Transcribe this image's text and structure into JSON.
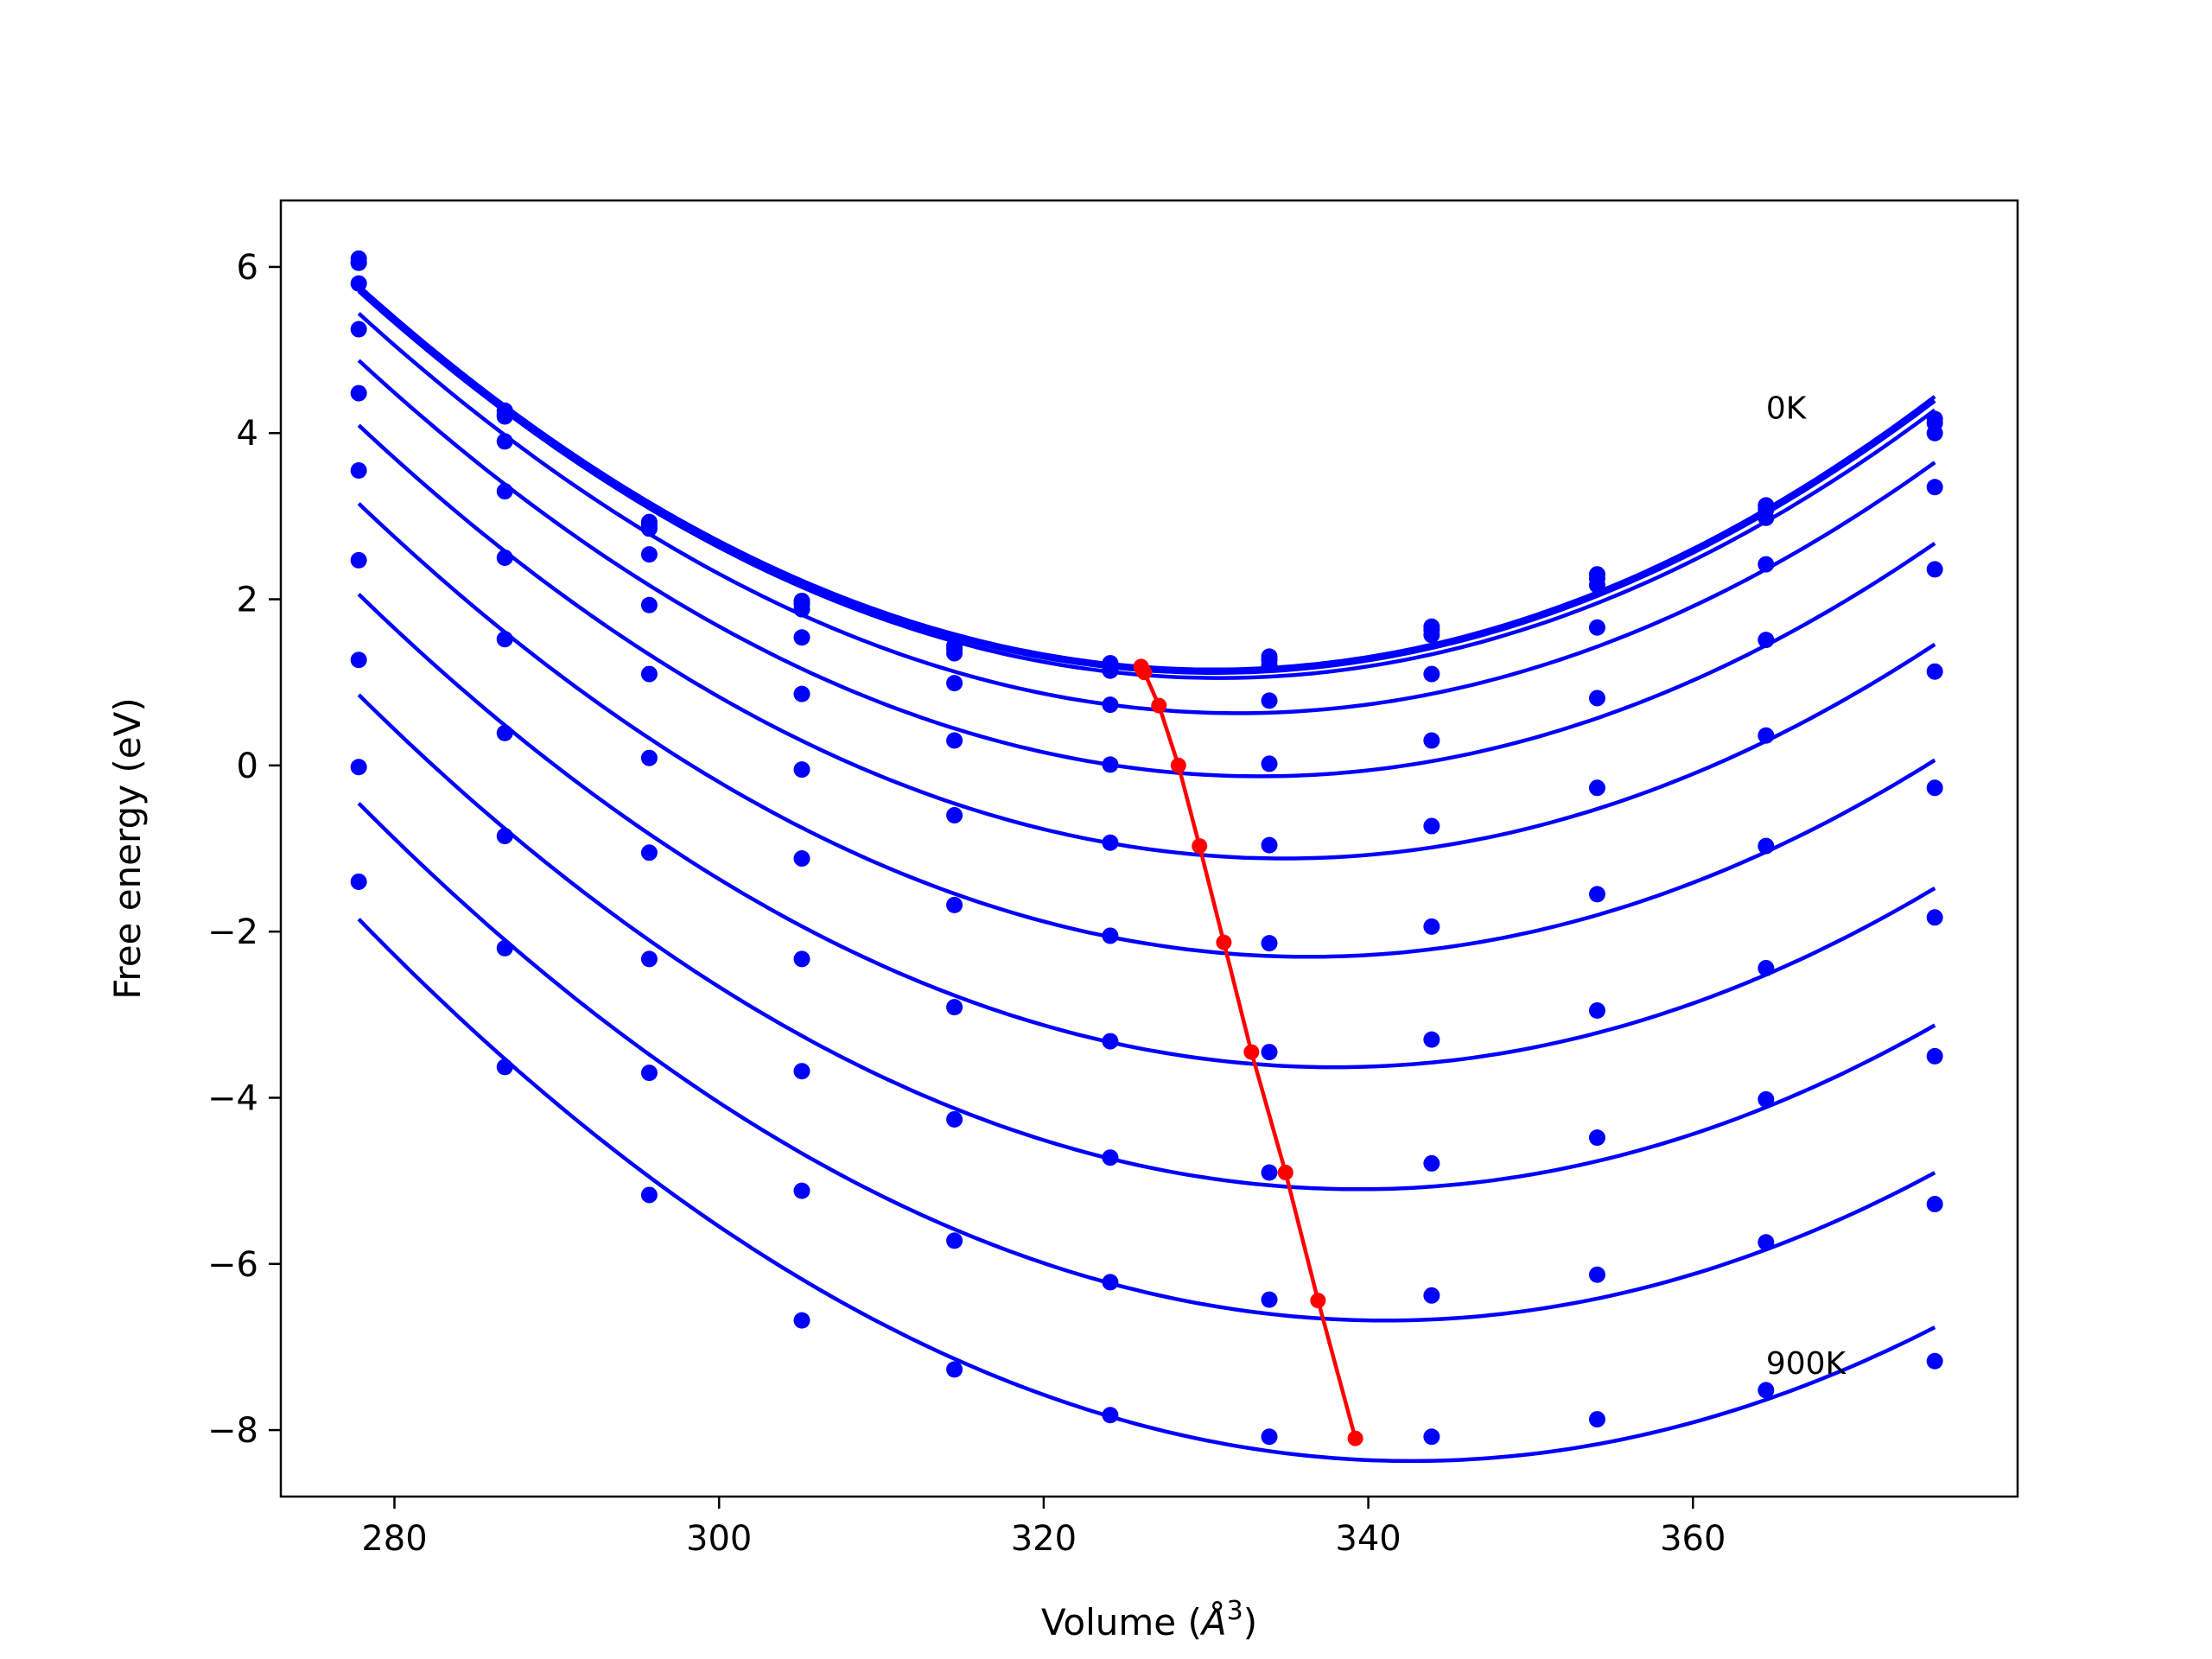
{
  "chart_data": {
    "type": "scatter",
    "title": "",
    "xlabel": "Volume (Å³)",
    "xlabel_parts": {
      "main": "Volume (",
      "unit": "Å",
      "sup": "3",
      "close": ")"
    },
    "ylabel": "Free energy (eV)",
    "xlim": [
      273,
      380
    ],
    "ylim": [
      -8.8,
      6.8
    ],
    "xticks": [
      280,
      300,
      320,
      340,
      360
    ],
    "yticks": [
      6,
      4,
      2,
      0,
      -2,
      -4,
      -6,
      -8
    ],
    "xtick_labels": [
      "280",
      "300",
      "320",
      "340",
      "360"
    ],
    "ytick_labels": [
      "6",
      "4",
      "2",
      "0",
      "−2",
      "−4",
      "−6",
      "−8"
    ],
    "grid": false,
    "annotations": [
      {
        "text": "0K",
        "x": 364.5,
        "y": 4.3
      },
      {
        "text": "900K",
        "x": 364.5,
        "y": -7.2
      }
    ],
    "colors": {
      "series": "#0000ff",
      "minimum_line": "#ff0000",
      "frame": "#000000"
    },
    "x": [
      277.8,
      286.8,
      295.7,
      305.1,
      314.5,
      324.1,
      333.9,
      343.9,
      354.1,
      364.5,
      374.9
    ],
    "series": [
      {
        "values": [
          6.1,
          4.27,
          2.93,
          1.98,
          1.44,
          1.23,
          1.31,
          1.67,
          2.3,
          3.13,
          4.17
        ],
        "fit_min": [
          326.0,
          1.19
        ]
      },
      {
        "values": [
          6.05,
          4.22,
          2.89,
          1.94,
          1.4,
          1.19,
          1.27,
          1.63,
          2.25,
          3.08,
          4.12
        ],
        "fit_min": [
          326.1,
          1.15
        ]
      },
      {
        "values": [
          6.05,
          4.2,
          2.85,
          1.88,
          1.35,
          1.14,
          1.21,
          1.57,
          2.17,
          2.98,
          4.0
        ],
        "fit_min": [
          326.2,
          1.12
        ]
      },
      {
        "values": [
          5.8,
          3.9,
          2.54,
          1.54,
          0.99,
          0.73,
          0.78,
          1.1,
          1.66,
          2.42,
          3.35
        ],
        "fit_min": [
          327.1,
          0.72
        ]
      },
      {
        "values": [
          5.25,
          3.3,
          1.93,
          0.86,
          0.3,
          0.01,
          0.02,
          0.3,
          0.81,
          1.51,
          2.36
        ],
        "fit_min": [
          328.3,
          0.0
        ]
      },
      {
        "values": [
          4.48,
          2.5,
          1.1,
          -0.05,
          -0.6,
          -0.93,
          -0.96,
          -0.73,
          -0.27,
          0.36,
          1.13
        ],
        "fit_min": [
          329.6,
          -0.97
        ]
      },
      {
        "values": [
          3.55,
          1.52,
          0.09,
          -1.12,
          -1.68,
          -2.05,
          -2.14,
          -1.94,
          -1.55,
          -0.97,
          -0.27
        ],
        "fit_min": [
          331.1,
          -2.13
        ]
      },
      {
        "values": [
          2.47,
          0.39,
          -1.05,
          -2.33,
          -2.91,
          -3.32,
          -3.45,
          -3.3,
          -2.95,
          -2.44,
          -1.83
        ],
        "fit_min": [
          332.8,
          -3.45
        ]
      },
      {
        "values": [
          1.27,
          -0.85,
          -2.33,
          -3.68,
          -4.26,
          -4.72,
          -4.9,
          -4.79,
          -4.48,
          -4.02,
          -3.5
        ],
        "fit_min": [
          334.9,
          -4.9
        ]
      },
      {
        "values": [
          -0.02,
          -2.2,
          -3.7,
          -5.12,
          -5.72,
          -6.22,
          -6.43,
          -6.38,
          -6.13,
          -5.74,
          -5.28
        ],
        "fit_min": [
          336.9,
          -6.44
        ]
      },
      {
        "values": [
          -1.4,
          -3.63,
          -5.17,
          -6.68,
          -7.27,
          -7.82,
          -8.08,
          -8.08,
          -7.87,
          -7.52,
          -7.17
        ],
        "fit_min": [
          339.2,
          -8.1
        ]
      }
    ]
  }
}
